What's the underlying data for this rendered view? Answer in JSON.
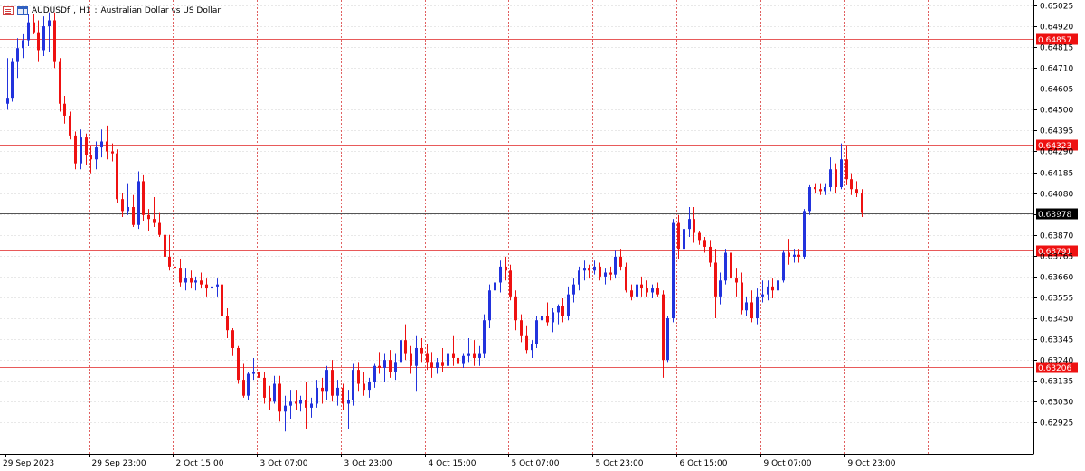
{
  "header": {
    "symbol": "AUDUSDf",
    "timeframe": "H1",
    "description": "Australian Dollar vs US Dollar",
    "menu_icon": "chart-menu-icon",
    "window_icon": "window-layout-icon"
  },
  "colors": {
    "bull": "#2233dd",
    "bear": "#ee1111",
    "level_line": "#e85a5a",
    "level_label_bg": "#ee1111",
    "current_line": "#555555",
    "current_label_bg": "#000000",
    "grid_vertical": "#e06060",
    "grid_horizontal": "#e8e8e8"
  },
  "chart_data": {
    "type": "candlestick",
    "title": "AUDUSDf, H1: Australian Dollar vs US Dollar",
    "ylim": [
      0.62872,
      0.65025
    ],
    "y_ticks": [
      "0.65025",
      "0.64920",
      "0.64815",
      "0.64710",
      "0.64605",
      "0.64500",
      "0.64395",
      "0.64290",
      "0.64185",
      "0.64080",
      "0.63975",
      "0.63870",
      "0.63765",
      "0.63660",
      "0.63555",
      "0.63450",
      "0.63345",
      "0.63240",
      "0.63135",
      "0.63030",
      "0.62925"
    ],
    "x_ticks": [
      {
        "label": "29 Sep 2023",
        "bar": 0
      },
      {
        "label": "29 Sep 23:00",
        "bar": 16
      },
      {
        "label": "2 Oct 15:00",
        "bar": 32
      },
      {
        "label": "3 Oct 07:00",
        "bar": 48
      },
      {
        "label": "3 Oct 23:00",
        "bar": 64
      },
      {
        "label": "4 Oct 15:00",
        "bar": 80
      },
      {
        "label": "5 Oct 07:00",
        "bar": 96
      },
      {
        "label": "5 Oct 23:00",
        "bar": 112
      },
      {
        "label": "6 Oct 15:00",
        "bar": 128
      },
      {
        "label": "9 Oct 07:00",
        "bar": 144
      },
      {
        "label": "9 Oct 23:00",
        "bar": 160
      }
    ],
    "extra_vertical_grid_bars": [
      176
    ],
    "bars_visible": 203,
    "levels": [
      {
        "price": "0.64857",
        "value": 0.64857
      },
      {
        "price": "0.64323",
        "value": 0.64323
      },
      {
        "price": "0.63791",
        "value": 0.63791
      },
      {
        "price": "0.63206",
        "value": 0.63206
      }
    ],
    "current_price": {
      "price": "0.63978",
      "value": 0.63978
    },
    "grid": true,
    "ohlc": [
      [
        0.6453,
        0.6476,
        0.645,
        0.6456
      ],
      [
        0.6456,
        0.6476,
        0.6454,
        0.6474
      ],
      [
        0.6474,
        0.6486,
        0.6466,
        0.6481
      ],
      [
        0.6481,
        0.6488,
        0.6476,
        0.6485
      ],
      [
        0.6485,
        0.6498,
        0.6482,
        0.6494
      ],
      [
        0.6494,
        0.6498,
        0.6488,
        0.6489
      ],
      [
        0.6489,
        0.6495,
        0.6474,
        0.648
      ],
      [
        0.648,
        0.6497,
        0.6477,
        0.6492
      ],
      [
        0.6492,
        0.6499,
        0.6479,
        0.6495
      ],
      [
        0.6495,
        0.6499,
        0.6471,
        0.6474
      ],
      [
        0.6474,
        0.6476,
        0.6449,
        0.6453
      ],
      [
        0.6453,
        0.6457,
        0.6443,
        0.6447
      ],
      [
        0.6447,
        0.6449,
        0.6435,
        0.6437
      ],
      [
        0.6437,
        0.6439,
        0.642,
        0.6423
      ],
      [
        0.6423,
        0.644,
        0.642,
        0.6436
      ],
      [
        0.6436,
        0.6438,
        0.6422,
        0.6427
      ],
      [
        0.6427,
        0.6432,
        0.6418,
        0.6425
      ],
      [
        0.6425,
        0.6434,
        0.642,
        0.6431
      ],
      [
        0.6431,
        0.644,
        0.6426,
        0.6434
      ],
      [
        0.6434,
        0.6442,
        0.6425,
        0.6429
      ],
      [
        0.6429,
        0.6433,
        0.6424,
        0.6428
      ],
      [
        0.6428,
        0.643,
        0.6403,
        0.6405
      ],
      [
        0.6405,
        0.6408,
        0.6396,
        0.6399
      ],
      [
        0.6399,
        0.6413,
        0.6397,
        0.6401
      ],
      [
        0.6401,
        0.6407,
        0.6391,
        0.6392
      ],
      [
        0.6392,
        0.6419,
        0.639,
        0.6414
      ],
      [
        0.6414,
        0.6417,
        0.6394,
        0.6397
      ],
      [
        0.6397,
        0.64,
        0.6389,
        0.6395
      ],
      [
        0.6395,
        0.6406,
        0.6391,
        0.6393
      ],
      [
        0.6393,
        0.6398,
        0.6386,
        0.6387
      ],
      [
        0.6387,
        0.6393,
        0.6373,
        0.6376
      ],
      [
        0.6376,
        0.6387,
        0.6369,
        0.6371
      ],
      [
        0.6371,
        0.6378,
        0.6366,
        0.637
      ],
      [
        0.637,
        0.6375,
        0.6361,
        0.6363
      ],
      [
        0.6363,
        0.637,
        0.6359,
        0.6365
      ],
      [
        0.6365,
        0.6369,
        0.636,
        0.6363
      ],
      [
        0.6363,
        0.6366,
        0.6359,
        0.6364
      ],
      [
        0.6364,
        0.6368,
        0.636,
        0.6362
      ],
      [
        0.6362,
        0.6365,
        0.6356,
        0.636
      ],
      [
        0.636,
        0.6364,
        0.6357,
        0.6361
      ],
      [
        0.6361,
        0.6365,
        0.6356,
        0.6362
      ],
      [
        0.6362,
        0.6364,
        0.6343,
        0.6346
      ],
      [
        0.6346,
        0.635,
        0.6335,
        0.6339
      ],
      [
        0.6339,
        0.634,
        0.6326,
        0.633
      ],
      [
        0.633,
        0.6331,
        0.6312,
        0.6314
      ],
      [
        0.6314,
        0.6322,
        0.6305,
        0.6306
      ],
      [
        0.6306,
        0.6318,
        0.6304,
        0.6317
      ],
      [
        0.6317,
        0.6325,
        0.6314,
        0.6318
      ],
      [
        0.6318,
        0.6328,
        0.6312,
        0.6315
      ],
      [
        0.6315,
        0.6318,
        0.6302,
        0.6305
      ],
      [
        0.6305,
        0.6311,
        0.6299,
        0.6303
      ],
      [
        0.6303,
        0.6316,
        0.6302,
        0.6312
      ],
      [
        0.6312,
        0.6316,
        0.6293,
        0.6298
      ],
      [
        0.6298,
        0.6306,
        0.6288,
        0.6301
      ],
      [
        0.6301,
        0.6309,
        0.6294,
        0.6303
      ],
      [
        0.6303,
        0.6309,
        0.6299,
        0.6302
      ],
      [
        0.6302,
        0.6306,
        0.6298,
        0.6304
      ],
      [
        0.6304,
        0.6313,
        0.6289,
        0.63
      ],
      [
        0.63,
        0.6305,
        0.6295,
        0.6302
      ],
      [
        0.6302,
        0.6314,
        0.63,
        0.631
      ],
      [
        0.631,
        0.6315,
        0.6302,
        0.6308
      ],
      [
        0.6308,
        0.6321,
        0.6304,
        0.6319
      ],
      [
        0.6319,
        0.6324,
        0.6303,
        0.6306
      ],
      [
        0.6306,
        0.6314,
        0.6301,
        0.631
      ],
      [
        0.631,
        0.6312,
        0.6299,
        0.6302
      ],
      [
        0.6302,
        0.6309,
        0.6289,
        0.6304
      ],
      [
        0.6304,
        0.6322,
        0.6301,
        0.6319
      ],
      [
        0.6319,
        0.6323,
        0.6308,
        0.6312
      ],
      [
        0.6312,
        0.6318,
        0.6306,
        0.6309
      ],
      [
        0.6309,
        0.6315,
        0.6305,
        0.6313
      ],
      [
        0.6313,
        0.6322,
        0.631,
        0.6321
      ],
      [
        0.6321,
        0.6328,
        0.6317,
        0.632
      ],
      [
        0.632,
        0.6327,
        0.6313,
        0.6324
      ],
      [
        0.6324,
        0.6329,
        0.6315,
        0.6318
      ],
      [
        0.6318,
        0.6327,
        0.6314,
        0.6323
      ],
      [
        0.6323,
        0.6335,
        0.6321,
        0.6334
      ],
      [
        0.6334,
        0.6342,
        0.6324,
        0.6327
      ],
      [
        0.6327,
        0.6331,
        0.6317,
        0.6321
      ],
      [
        0.6321,
        0.6336,
        0.6308,
        0.633
      ],
      [
        0.633,
        0.6335,
        0.6323,
        0.6327
      ],
      [
        0.6327,
        0.6332,
        0.6319,
        0.6323
      ],
      [
        0.6323,
        0.6328,
        0.6315,
        0.632
      ],
      [
        0.632,
        0.6325,
        0.6317,
        0.6323
      ],
      [
        0.6323,
        0.633,
        0.6318,
        0.6321
      ],
      [
        0.6321,
        0.6329,
        0.6319,
        0.6327
      ],
      [
        0.6327,
        0.6336,
        0.6321,
        0.6325
      ],
      [
        0.6325,
        0.6331,
        0.6319,
        0.6322
      ],
      [
        0.6322,
        0.6327,
        0.632,
        0.6326
      ],
      [
        0.6326,
        0.6335,
        0.6323,
        0.6327
      ],
      [
        0.6327,
        0.6334,
        0.6321,
        0.6325
      ],
      [
        0.6325,
        0.6331,
        0.6321,
        0.6327
      ],
      [
        0.6327,
        0.6347,
        0.6325,
        0.6344
      ],
      [
        0.6344,
        0.6362,
        0.634,
        0.6359
      ],
      [
        0.6359,
        0.637,
        0.6356,
        0.6363
      ],
      [
        0.6363,
        0.6374,
        0.6358,
        0.6371
      ],
      [
        0.6371,
        0.6376,
        0.6364,
        0.6369
      ],
      [
        0.6369,
        0.6372,
        0.6354,
        0.6356
      ],
      [
        0.6356,
        0.6359,
        0.6339,
        0.6344
      ],
      [
        0.6344,
        0.6347,
        0.6333,
        0.6336
      ],
      [
        0.6336,
        0.6341,
        0.6327,
        0.6329
      ],
      [
        0.6329,
        0.6334,
        0.6325,
        0.6332
      ],
      [
        0.6332,
        0.6346,
        0.633,
        0.6344
      ],
      [
        0.6344,
        0.6349,
        0.6338,
        0.6346
      ],
      [
        0.6346,
        0.6353,
        0.6341,
        0.6343
      ],
      [
        0.6343,
        0.635,
        0.6338,
        0.6348
      ],
      [
        0.6348,
        0.6352,
        0.6342,
        0.6351
      ],
      [
        0.6351,
        0.6355,
        0.6343,
        0.6346
      ],
      [
        0.6346,
        0.6361,
        0.6344,
        0.6357
      ],
      [
        0.6357,
        0.6365,
        0.6353,
        0.6362
      ],
      [
        0.6362,
        0.6371,
        0.6359,
        0.6369
      ],
      [
        0.6369,
        0.6374,
        0.6364,
        0.637
      ],
      [
        0.637,
        0.6372,
        0.6365,
        0.6369
      ],
      [
        0.6369,
        0.6374,
        0.6367,
        0.6371
      ],
      [
        0.6371,
        0.6373,
        0.6364,
        0.6366
      ],
      [
        0.6366,
        0.637,
        0.6362,
        0.6368
      ],
      [
        0.6368,
        0.6371,
        0.6364,
        0.6367
      ],
      [
        0.6367,
        0.6379,
        0.6365,
        0.6376
      ],
      [
        0.6376,
        0.638,
        0.6369,
        0.6371
      ],
      [
        0.6371,
        0.6373,
        0.6358,
        0.6359
      ],
      [
        0.6359,
        0.6362,
        0.6354,
        0.6356
      ],
      [
        0.6356,
        0.6364,
        0.6355,
        0.6362
      ],
      [
        0.6362,
        0.6366,
        0.6356,
        0.636
      ],
      [
        0.636,
        0.6364,
        0.6356,
        0.6358
      ],
      [
        0.6358,
        0.6362,
        0.6355,
        0.636
      ],
      [
        0.636,
        0.6363,
        0.6356,
        0.6357
      ],
      [
        0.6357,
        0.6359,
        0.6315,
        0.6324
      ],
      [
        0.6324,
        0.6346,
        0.6323,
        0.6345
      ],
      [
        0.6345,
        0.6395,
        0.6343,
        0.6393
      ],
      [
        0.6393,
        0.6397,
        0.6375,
        0.638
      ],
      [
        0.638,
        0.6394,
        0.6377,
        0.639
      ],
      [
        0.639,
        0.6401,
        0.6386,
        0.6395
      ],
      [
        0.6395,
        0.6401,
        0.6383,
        0.6388
      ],
      [
        0.6388,
        0.6389,
        0.6382,
        0.6384
      ],
      [
        0.6384,
        0.6386,
        0.6378,
        0.6381
      ],
      [
        0.6381,
        0.6384,
        0.6371,
        0.6373
      ],
      [
        0.6373,
        0.638,
        0.6345,
        0.6356
      ],
      [
        0.6356,
        0.6368,
        0.6352,
        0.6364
      ],
      [
        0.6364,
        0.638,
        0.6362,
        0.6378
      ],
      [
        0.6378,
        0.638,
        0.636,
        0.6365
      ],
      [
        0.6365,
        0.637,
        0.6356,
        0.6363
      ],
      [
        0.6363,
        0.6368,
        0.6347,
        0.6349
      ],
      [
        0.6349,
        0.6356,
        0.6346,
        0.6353
      ],
      [
        0.6353,
        0.6359,
        0.6343,
        0.6345
      ],
      [
        0.6345,
        0.636,
        0.6342,
        0.6356
      ],
      [
        0.6356,
        0.6364,
        0.6353,
        0.6357
      ],
      [
        0.6357,
        0.6364,
        0.6354,
        0.6361
      ],
      [
        0.6361,
        0.6365,
        0.6355,
        0.6359
      ],
      [
        0.6359,
        0.6368,
        0.6358,
        0.6364
      ],
      [
        0.6364,
        0.6379,
        0.6363,
        0.6378
      ],
      [
        0.6378,
        0.6385,
        0.6372,
        0.6376
      ],
      [
        0.6376,
        0.638,
        0.6373,
        0.6377
      ],
      [
        0.6377,
        0.638,
        0.6373,
        0.6376
      ],
      [
        0.6376,
        0.64,
        0.6375,
        0.6399
      ],
      [
        0.6399,
        0.6412,
        0.6397,
        0.6411
      ],
      [
        0.6411,
        0.6413,
        0.6408,
        0.641
      ],
      [
        0.641,
        0.6413,
        0.6407,
        0.6409
      ],
      [
        0.6409,
        0.6413,
        0.6407,
        0.6411
      ],
      [
        0.6411,
        0.6426,
        0.6409,
        0.642
      ],
      [
        0.642,
        0.6423,
        0.6408,
        0.6411
      ],
      [
        0.6411,
        0.6433,
        0.641,
        0.6425
      ],
      [
        0.6425,
        0.6432,
        0.6412,
        0.6415
      ],
      [
        0.6415,
        0.6418,
        0.6407,
        0.641
      ],
      [
        0.641,
        0.6414,
        0.6406,
        0.6408
      ],
      [
        0.6408,
        0.641,
        0.6396,
        0.6398
      ]
    ]
  }
}
